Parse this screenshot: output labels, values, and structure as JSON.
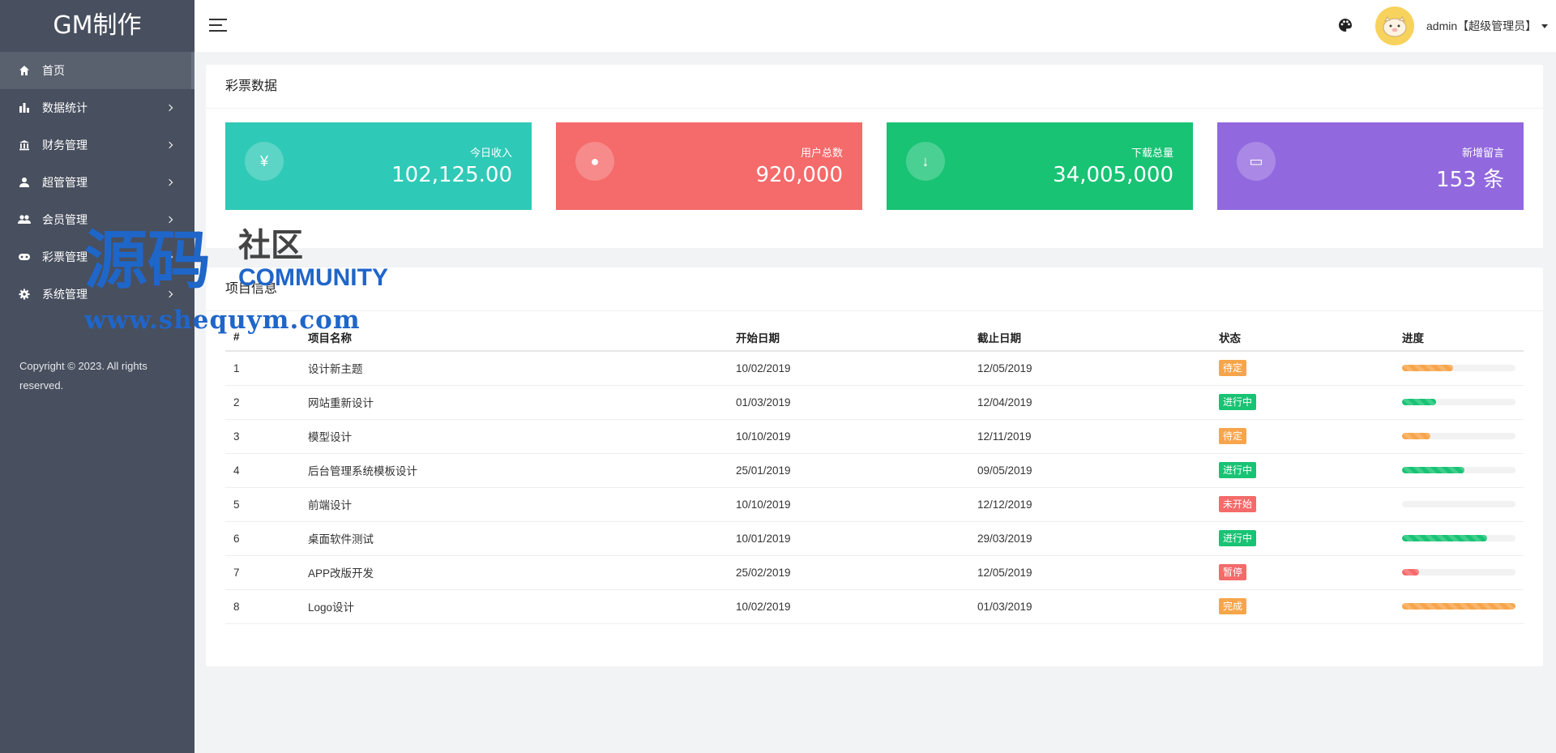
{
  "brand": "GM制作",
  "menu": [
    {
      "label": "首页",
      "icon": "home-icon",
      "active": true
    },
    {
      "label": "数据统计",
      "icon": "bar-chart-icon"
    },
    {
      "label": "财务管理",
      "icon": "bank-icon"
    },
    {
      "label": "超管管理",
      "icon": "user-icon"
    },
    {
      "label": "会员管理",
      "icon": "users-icon"
    },
    {
      "label": "彩票管理",
      "icon": "gamepad-icon"
    },
    {
      "label": "系统管理",
      "icon": "gear-icon"
    }
  ],
  "copyright": "Copyright © 2023. All rights reserved.",
  "header": {
    "user": "admin【超级管理员】"
  },
  "lottery": {
    "title": "彩票数据",
    "stats": [
      {
        "label": "今日收入",
        "value": "102,125.00",
        "icon_char": "¥",
        "icon": "yen-icon",
        "color": "#2fc9b7"
      },
      {
        "label": "用户总数",
        "value": "920,000",
        "icon_char": "●",
        "icon": "user-icon",
        "color": "#f56a6a"
      },
      {
        "label": "下载总量",
        "value": "34,005,000",
        "icon_char": "↓",
        "icon": "download-icon",
        "color": "#18c374"
      },
      {
        "label": "新增留言",
        "value": "153 条",
        "icon_char": "▭",
        "icon": "message-icon",
        "color": "#9168de"
      }
    ]
  },
  "projects": {
    "title": "项目信息",
    "columns": [
      "#",
      "项目名称",
      "开始日期",
      "截止日期",
      "状态",
      "进度"
    ],
    "rows": [
      {
        "id": "1",
        "name": "设计新主题",
        "start": "10/02/2019",
        "end": "12/05/2019",
        "status": "待定",
        "status_color": "#f7a54b",
        "progress": 45
      },
      {
        "id": "2",
        "name": "网站重新设计",
        "start": "01/03/2019",
        "end": "12/04/2019",
        "status": "进行中",
        "status_color": "#18c374",
        "progress": 30
      },
      {
        "id": "3",
        "name": "模型设计",
        "start": "10/10/2019",
        "end": "12/11/2019",
        "status": "待定",
        "status_color": "#f7a54b",
        "progress": 25
      },
      {
        "id": "4",
        "name": "后台管理系统模板设计",
        "start": "25/01/2019",
        "end": "09/05/2019",
        "status": "进行中",
        "status_color": "#18c374",
        "progress": 55
      },
      {
        "id": "5",
        "name": "前端设计",
        "start": "10/10/2019",
        "end": "12/12/2019",
        "status": "未开始",
        "status_color": "#f56a6a",
        "progress": 0
      },
      {
        "id": "6",
        "name": "桌面软件测试",
        "start": "10/01/2019",
        "end": "29/03/2019",
        "status": "进行中",
        "status_color": "#18c374",
        "progress": 75
      },
      {
        "id": "7",
        "name": "APP改版开发",
        "start": "25/02/2019",
        "end": "12/05/2019",
        "status": "暂停",
        "status_color": "#f56a6a",
        "progress": 15
      },
      {
        "id": "8",
        "name": "Logo设计",
        "start": "10/02/2019",
        "end": "01/03/2019",
        "status": "完成",
        "status_color": "#f7a54b",
        "progress": 100
      }
    ]
  },
  "watermark": {
    "big": "源码",
    "small": "社区",
    "comm": "COMMUNITY",
    "url": "www.shequym.com"
  }
}
